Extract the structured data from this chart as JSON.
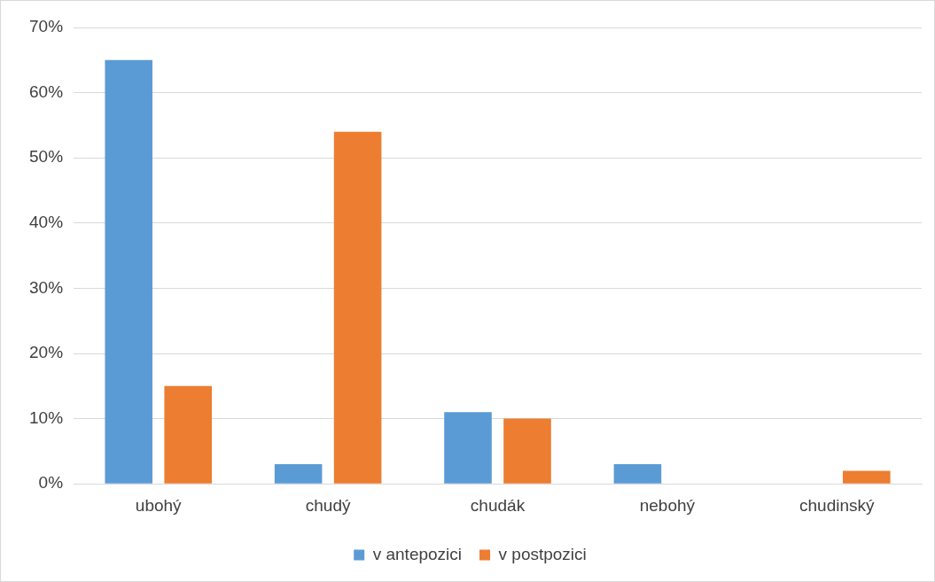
{
  "chart_data": {
    "type": "bar",
    "categories": [
      "ubohý",
      "chudý",
      "chudák",
      "nebohý",
      "chudinský"
    ],
    "series": [
      {
        "name": "v antepozici",
        "color": "#5b9bd5",
        "values": [
          65,
          3,
          11,
          3,
          0
        ]
      },
      {
        "name": "v postpozici",
        "color": "#ed7d31",
        "values": [
          15,
          54,
          10,
          0,
          2
        ]
      }
    ],
    "ylim": [
      0,
      70
    ],
    "yticks": [
      {
        "value": 0,
        "label": "0%"
      },
      {
        "value": 10,
        "label": "10%"
      },
      {
        "value": 20,
        "label": "20%"
      },
      {
        "value": 30,
        "label": "30%"
      },
      {
        "value": 40,
        "label": "40%"
      },
      {
        "value": 50,
        "label": "50%"
      },
      {
        "value": 60,
        "label": "60%"
      },
      {
        "value": 70,
        "label": "70%"
      }
    ],
    "grid": "y",
    "legend": "bottom"
  }
}
